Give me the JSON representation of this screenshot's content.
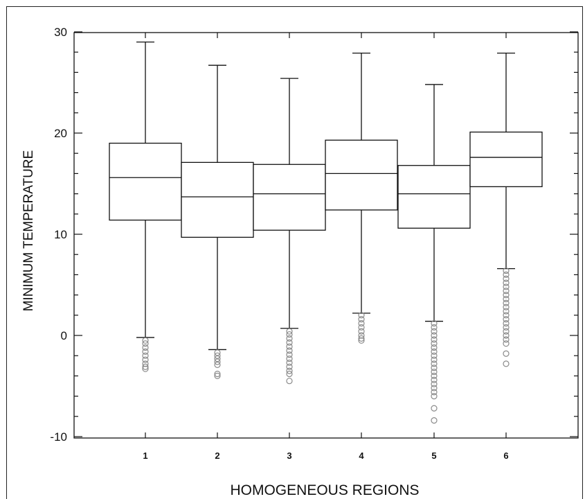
{
  "chart_data": {
    "type": "box",
    "xlabel": "HOMOGENEOUS REGIONS",
    "ylabel": "MINIMUM TEMPERATURE",
    "ylim": [
      -10.4,
      30.5
    ],
    "yticks": [
      "-10",
      "0",
      "10",
      "20",
      "30"
    ],
    "categories": [
      "1",
      "2",
      "3",
      "4",
      "5",
      "6"
    ],
    "boxes": [
      {
        "category": "1",
        "whisker_low": -0.2,
        "q1": 11.4,
        "median": 15.6,
        "q3": 19.0,
        "whisker_high": 29.0,
        "outliers": [
          -0.5,
          -0.8,
          -1.2,
          -1.6,
          -2.0,
          -2.4,
          -2.8,
          -3.1,
          -3.3
        ]
      },
      {
        "category": "2",
        "whisker_low": -1.4,
        "q1": 9.7,
        "median": 13.7,
        "q3": 17.1,
        "whisker_high": 26.7,
        "outliers": [
          -1.7,
          -2.0,
          -2.3,
          -2.6,
          -2.9,
          -3.8,
          -4.0
        ]
      },
      {
        "category": "3",
        "whisker_low": 0.7,
        "q1": 10.4,
        "median": 14.0,
        "q3": 16.9,
        "whisker_high": 25.4,
        "outliers": [
          0.4,
          0.1,
          -0.3,
          -0.7,
          -1.1,
          -1.5,
          -1.9,
          -2.3,
          -2.7,
          -3.1,
          -3.5,
          -3.8,
          -4.5
        ]
      },
      {
        "category": "4",
        "whisker_low": 2.2,
        "q1": 12.4,
        "median": 16.0,
        "q3": 19.3,
        "whisker_high": 27.9,
        "outliers": [
          2.0,
          1.6,
          1.2,
          0.8,
          0.4,
          0.0,
          -0.3,
          -0.5
        ]
      },
      {
        "category": "5",
        "whisker_low": 1.4,
        "q1": 10.6,
        "median": 14.0,
        "q3": 16.8,
        "whisker_high": 24.8,
        "outliers": [
          1.2,
          0.8,
          0.4,
          0.0,
          -0.4,
          -0.8,
          -1.2,
          -1.6,
          -2.0,
          -2.4,
          -2.8,
          -3.2,
          -3.6,
          -4.0,
          -4.4,
          -4.8,
          -5.2,
          -5.6,
          -6.0,
          -7.2,
          -8.4
        ]
      },
      {
        "category": "6",
        "whisker_low": 6.6,
        "q1": 14.7,
        "median": 17.6,
        "q3": 20.1,
        "whisker_high": 27.9,
        "outliers": [
          6.4,
          6.0,
          5.6,
          5.2,
          4.8,
          4.4,
          4.0,
          3.6,
          3.2,
          2.8,
          2.4,
          2.0,
          1.6,
          1.2,
          0.8,
          0.4,
          0.0,
          -0.4,
          -0.8,
          -1.8,
          -2.8
        ]
      }
    ],
    "grid": false,
    "legend": "none"
  }
}
